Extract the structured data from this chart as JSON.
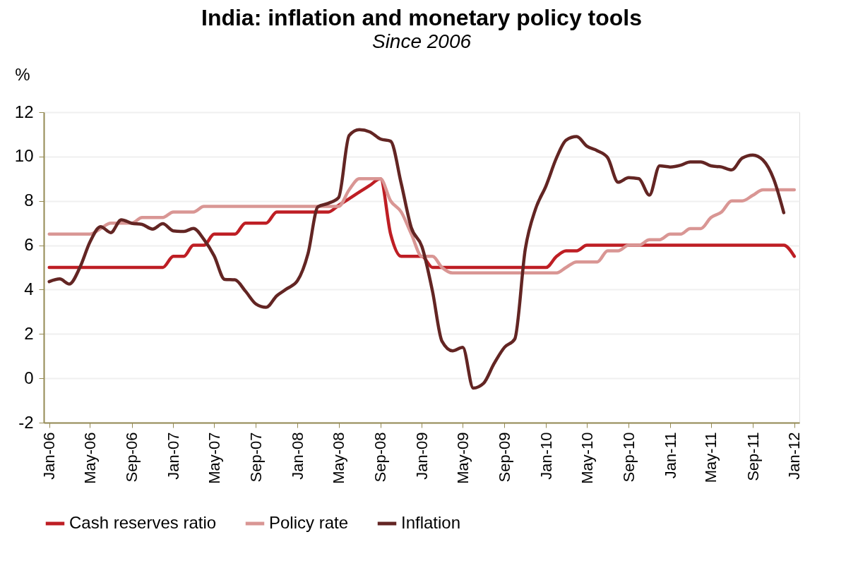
{
  "chart_data": {
    "type": "line",
    "title": "India: inflation and monetary policy tools",
    "subtitle": "Since 2006",
    "ylabel": "%",
    "x": [
      "2006-01",
      "2006-02",
      "2006-03",
      "2006-04",
      "2006-05",
      "2006-06",
      "2006-07",
      "2006-08",
      "2006-09",
      "2006-10",
      "2006-11",
      "2006-12",
      "2007-01",
      "2007-02",
      "2007-03",
      "2007-04",
      "2007-05",
      "2007-06",
      "2007-07",
      "2007-08",
      "2007-09",
      "2007-10",
      "2007-11",
      "2007-12",
      "2008-01",
      "2008-02",
      "2008-03",
      "2008-04",
      "2008-05",
      "2008-06",
      "2008-07",
      "2008-08",
      "2008-09",
      "2008-10",
      "2008-11",
      "2008-12",
      "2009-01",
      "2009-02",
      "2009-03",
      "2009-04",
      "2009-05",
      "2009-06",
      "2009-07",
      "2009-08",
      "2009-09",
      "2009-10",
      "2009-11",
      "2009-12",
      "2010-01",
      "2010-02",
      "2010-03",
      "2010-04",
      "2010-05",
      "2010-06",
      "2010-07",
      "2010-08",
      "2010-09",
      "2010-10",
      "2010-11",
      "2010-12",
      "2011-01",
      "2011-02",
      "2011-03",
      "2011-04",
      "2011-05",
      "2011-06",
      "2011-07",
      "2011-08",
      "2011-09",
      "2011-10",
      "2011-11",
      "2011-12",
      "2012-01"
    ],
    "series": [
      {
        "name": "Cash reserves ratio",
        "color": "#be1e24",
        "values": [
          5,
          5,
          5,
          5,
          5,
          5,
          5,
          5,
          5,
          5,
          5,
          5,
          5.5,
          5.5,
          6,
          6,
          6.5,
          6.5,
          6.5,
          7,
          7,
          7,
          7.5,
          7.5,
          7.5,
          7.5,
          7.5,
          7.5,
          7.8,
          8.1,
          8.4,
          8.7,
          9,
          6.5,
          5.5,
          5.5,
          5.5,
          5,
          5,
          5,
          5,
          5,
          5,
          5,
          5,
          5,
          5,
          5,
          5,
          5.5,
          5.75,
          5.75,
          6,
          6,
          6,
          6,
          6,
          6,
          6,
          6,
          6,
          6,
          6,
          6,
          6,
          6,
          6,
          6,
          6,
          6,
          6,
          6,
          5.5
        ]
      },
      {
        "name": "Policy rate",
        "color": "#d99694",
        "values": [
          6.5,
          6.5,
          6.5,
          6.5,
          6.5,
          6.75,
          7,
          7,
          7,
          7.25,
          7.25,
          7.25,
          7.5,
          7.5,
          7.5,
          7.75,
          7.75,
          7.75,
          7.75,
          7.75,
          7.75,
          7.75,
          7.75,
          7.75,
          7.75,
          7.75,
          7.75,
          7.75,
          7.75,
          8.5,
          9,
          9,
          9,
          8,
          7.5,
          6.5,
          5.5,
          5.5,
          5,
          4.75,
          4.75,
          4.75,
          4.75,
          4.75,
          4.75,
          4.75,
          4.75,
          4.75,
          4.75,
          4.75,
          5,
          5.25,
          5.25,
          5.25,
          5.75,
          5.75,
          6,
          6,
          6.25,
          6.25,
          6.5,
          6.5,
          6.75,
          6.75,
          7.25,
          7.5,
          8,
          8,
          8.25,
          8.5,
          8.5,
          8.5,
          8.5
        ]
      },
      {
        "name": "Inflation",
        "color": "#632523",
        "values": [
          4.36,
          4.48,
          4.25,
          4.99,
          6.15,
          6.84,
          6.57,
          7.15,
          6.99,
          6.94,
          6.73,
          6.97,
          6.65,
          6.62,
          6.76,
          6.26,
          5.52,
          4.46,
          4.44,
          3.93,
          3.35,
          3.2,
          3.72,
          4.04,
          4.4,
          5.62,
          7.73,
          7.89,
          8.15,
          10.95,
          11.21,
          11.11,
          10.79,
          10.69,
          8.79,
          6.78,
          5.94,
          3.93,
          1.67,
          1.24,
          1.4,
          -0.44,
          -0.23,
          0.66,
          1.4,
          1.77,
          5.83,
          7.63,
          8.68,
          9.95,
          10.74,
          10.9,
          10.47,
          10.26,
          9.95,
          8.84,
          9.05,
          9,
          8.26,
          9.58,
          9.53,
          9.61,
          9.76,
          9.76,
          9.58,
          9.53,
          9.4,
          9.93,
          10.07,
          9.84,
          9,
          7.47,
          null
        ]
      }
    ],
    "xlim": [
      "2005-12-16",
      "2012-01-16"
    ],
    "xticks": [
      {
        "value": "2006-01",
        "label": "Jan-06"
      },
      {
        "value": "2006-05",
        "label": "May-06"
      },
      {
        "value": "2006-09",
        "label": "Sep-06"
      },
      {
        "value": "2007-01",
        "label": "Jan-07"
      },
      {
        "value": "2007-05",
        "label": "May-07"
      },
      {
        "value": "2007-09",
        "label": "Sep-07"
      },
      {
        "value": "2008-01",
        "label": "Jan-08"
      },
      {
        "value": "2008-05",
        "label": "May-08"
      },
      {
        "value": "2008-09",
        "label": "Sep-08"
      },
      {
        "value": "2009-01",
        "label": "Jan-09"
      },
      {
        "value": "2009-05",
        "label": "May-09"
      },
      {
        "value": "2009-09",
        "label": "Sep-09"
      },
      {
        "value": "2010-01",
        "label": "Jan-10"
      },
      {
        "value": "2010-05",
        "label": "May-10"
      },
      {
        "value": "2010-09",
        "label": "Sep-10"
      },
      {
        "value": "2011-01",
        "label": "Jan-11"
      },
      {
        "value": "2011-05",
        "label": "May-11"
      },
      {
        "value": "2011-09",
        "label": "Sep-11"
      },
      {
        "value": "2012-01",
        "label": "Jan-12"
      }
    ],
    "ylim": [
      -2,
      12
    ],
    "yticks": [
      -2,
      0,
      2,
      4,
      6,
      8,
      10,
      12
    ],
    "grid": "y",
    "legend": "bottom",
    "marker": "none",
    "line_style": "solid"
  }
}
